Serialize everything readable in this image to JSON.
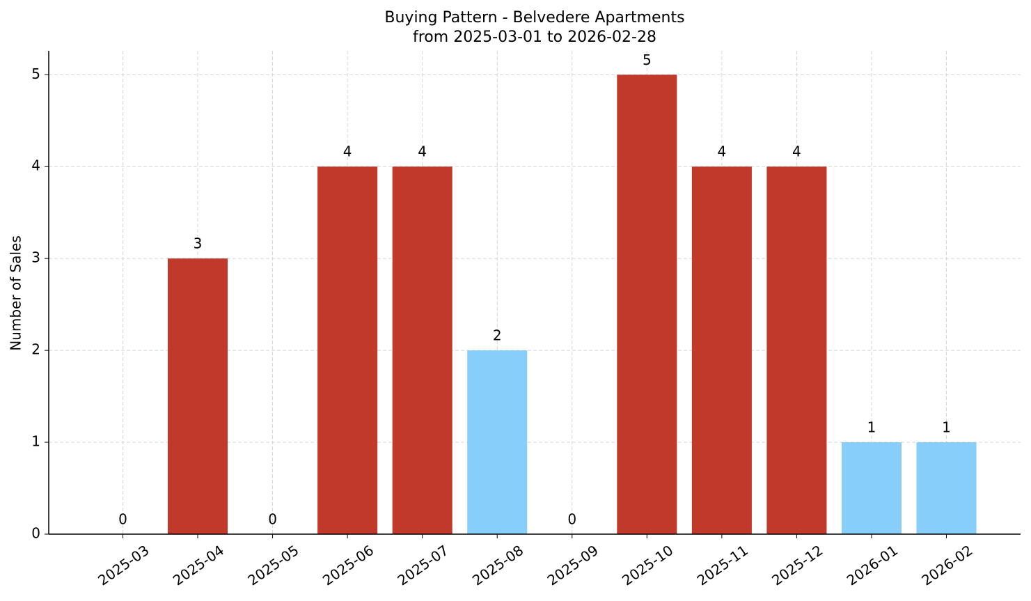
{
  "chart_data": {
    "type": "bar",
    "title": "Buying Pattern - Belvedere Apartments",
    "subtitle": "from 2025-03-01 to 2026-02-28",
    "y_label": "Number of Sales",
    "categories": [
      "2025-03",
      "2025-04",
      "2025-05",
      "2025-06",
      "2025-07",
      "2025-08",
      "2025-09",
      "2025-10",
      "2025-11",
      "2025-12",
      "2026-01",
      "2026-02"
    ],
    "values": [
      0,
      3,
      0,
      4,
      4,
      2,
      0,
      5,
      4,
      4,
      1,
      1
    ],
    "colors": [
      "#c0392b",
      "#c0392b",
      "#c0392b",
      "#c0392b",
      "#c0392b",
      "#87cefa",
      "#c0392b",
      "#c0392b",
      "#c0392b",
      "#c0392b",
      "#87cefa",
      "#87cefa"
    ],
    "ylim": [
      0,
      5.26
    ],
    "yticks": [
      0,
      1,
      2,
      3,
      4,
      5
    ],
    "grid": true
  }
}
